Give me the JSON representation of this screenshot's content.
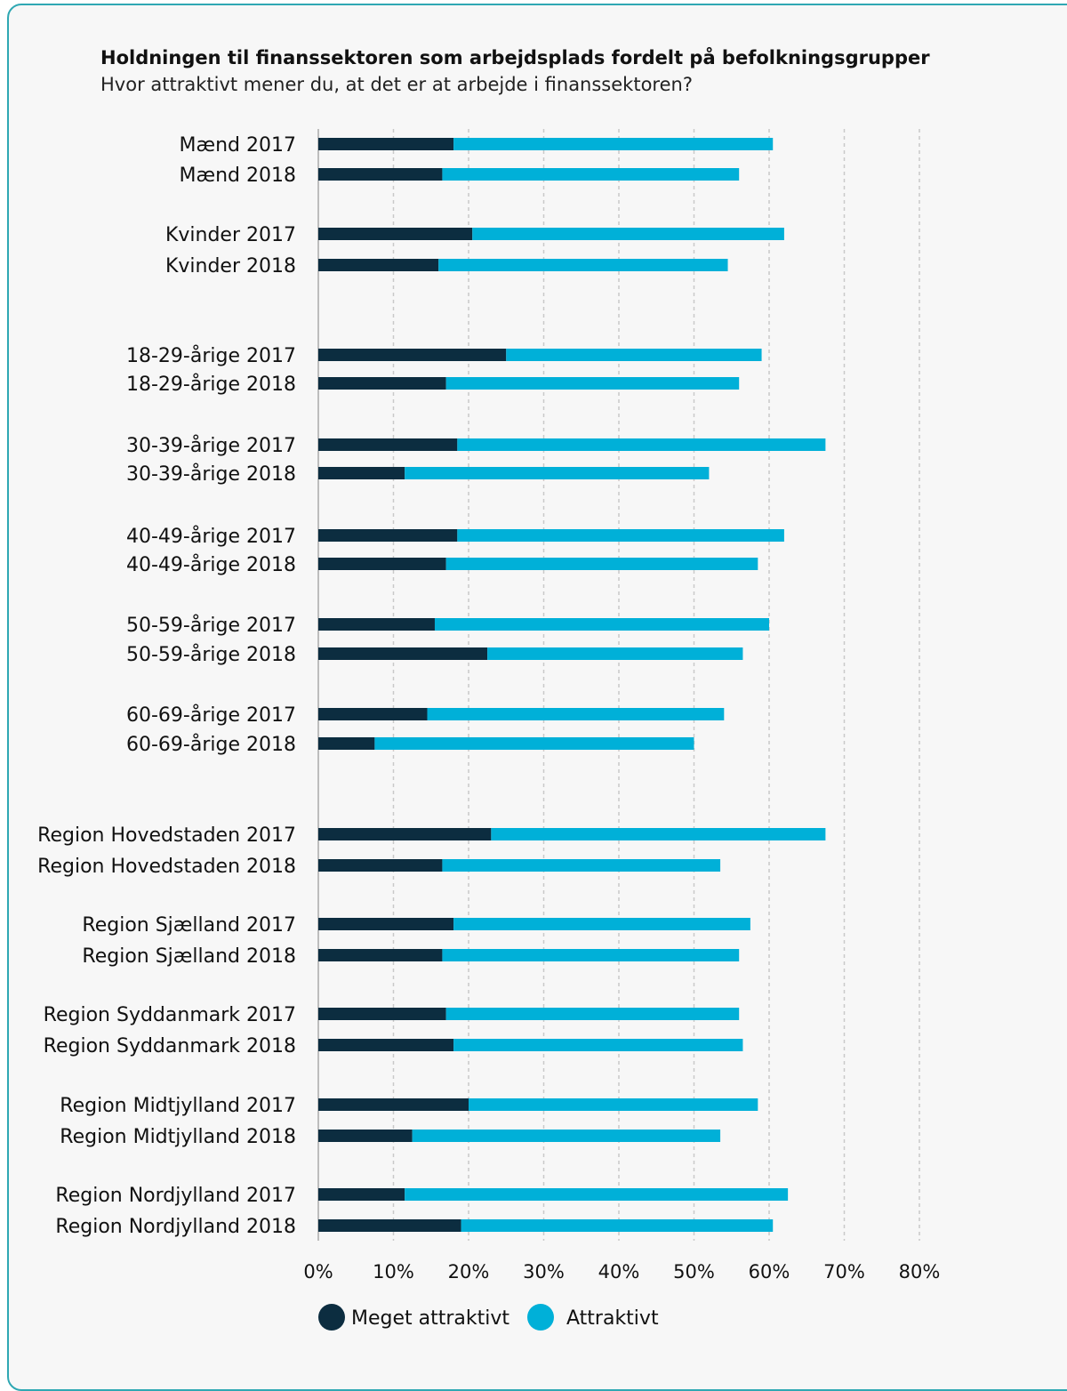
{
  "colors": {
    "meget": "#0c2d40",
    "attraktivt": "#00b0d8",
    "grid": "#c9c9c9",
    "axis": "#bdbdbd",
    "border": "#2fa8b3"
  },
  "chart_data": {
    "type": "bar",
    "orientation": "horizontal",
    "stacked": true,
    "title": "Holdningen til finanssektoren som arbejdsplads fordelt på befolkningsgrupper",
    "subtitle": "Hvor attraktivt mener du, at det er at arbejde i finanssektoren?",
    "categories": [
      "Mænd 2017",
      "Mænd 2018",
      "Kvinder 2017",
      "Kvinder 2018",
      "18-29-årige 2017",
      "18-29-årige 2018",
      "30-39-årige 2017",
      "30-39-årige 2018",
      "40-49-årige 2017",
      "40-49-årige 2018",
      "50-59-årige 2017",
      "50-59-årige 2018",
      "60-69-årige 2017",
      "60-69-årige 2018",
      "Region Hovedstaden 2017",
      "Region Hovedstaden 2018",
      "Region Sjælland 2017",
      "Region Sjælland 2018",
      "Region Syddanmark 2017",
      "Region Syddanmark 2018",
      "Region Midtjylland 2017",
      "Region Midtjylland 2018",
      "Region Nordjylland 2017",
      "Region Nordjylland 2018"
    ],
    "series": [
      {
        "name": "Meget attraktivt",
        "values": [
          18,
          16.5,
          20.5,
          16,
          25,
          17,
          18.5,
          11.5,
          18.5,
          17,
          15.5,
          22.5,
          14.5,
          7.5,
          23,
          16.5,
          18,
          16.5,
          17,
          18,
          20,
          12.5,
          11.5,
          19
        ]
      },
      {
        "name": "Attraktivt",
        "values": [
          42.5,
          39.5,
          41.5,
          38.5,
          34,
          39,
          49,
          40.5,
          43.5,
          41.5,
          44.5,
          34,
          39.5,
          42.5,
          44.5,
          37,
          39.5,
          39.5,
          39,
          38.5,
          38.5,
          41,
          51,
          41.5
        ]
      }
    ],
    "xlim": [
      0,
      80
    ],
    "xticks": [
      "0%",
      "10%",
      "20%",
      "30%",
      "40%",
      "50%",
      "60%",
      "70%",
      "80%"
    ],
    "grid": true,
    "legend_position": "bottom"
  }
}
